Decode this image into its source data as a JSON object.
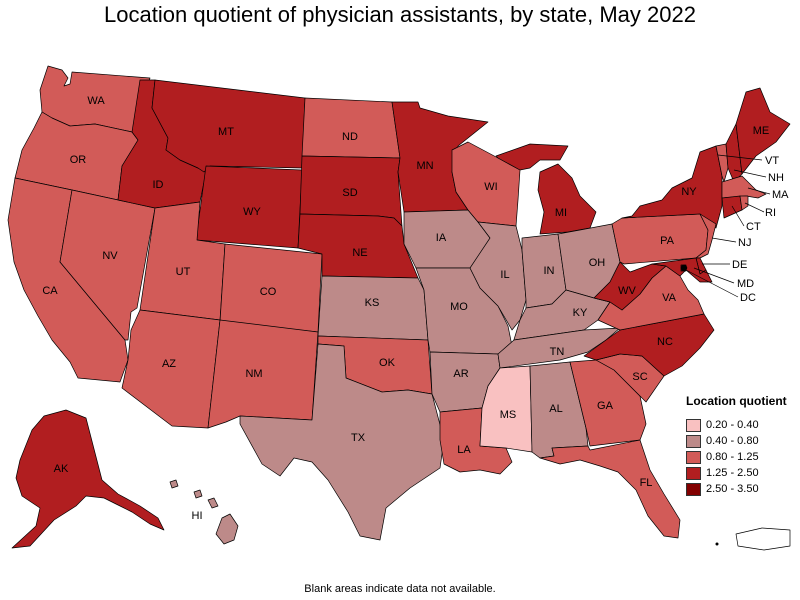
{
  "title": "Location quotient of physician assistants, by state, May 2022",
  "footnote": "Blank areas indicate data not available.",
  "legend": {
    "title": "Location quotient",
    "bins": [
      {
        "label": "0.20 - 0.40",
        "color": "#f9c1c1"
      },
      {
        "label": "0.40 - 0.80",
        "color": "#bd8a89"
      },
      {
        "label": "0.80 - 1.25",
        "color": "#d25b58"
      },
      {
        "label": "1.25 - 2.50",
        "color": "#b11e20"
      },
      {
        "label": "2.50 - 3.50",
        "color": "#820000"
      }
    ]
  },
  "states": [
    {
      "abbr": "WA",
      "bin": 2
    },
    {
      "abbr": "OR",
      "bin": 2
    },
    {
      "abbr": "CA",
      "bin": 2
    },
    {
      "abbr": "NV",
      "bin": 2
    },
    {
      "abbr": "ID",
      "bin": 3
    },
    {
      "abbr": "MT",
      "bin": 3
    },
    {
      "abbr": "WY",
      "bin": 3
    },
    {
      "abbr": "UT",
      "bin": 2
    },
    {
      "abbr": "CO",
      "bin": 2
    },
    {
      "abbr": "AZ",
      "bin": 2
    },
    {
      "abbr": "NM",
      "bin": 2
    },
    {
      "abbr": "ND",
      "bin": 2
    },
    {
      "abbr": "SD",
      "bin": 3
    },
    {
      "abbr": "NE",
      "bin": 3
    },
    {
      "abbr": "KS",
      "bin": 1
    },
    {
      "abbr": "OK",
      "bin": 2
    },
    {
      "abbr": "TX",
      "bin": 1
    },
    {
      "abbr": "MN",
      "bin": 3
    },
    {
      "abbr": "IA",
      "bin": 1
    },
    {
      "abbr": "MO",
      "bin": 1
    },
    {
      "abbr": "AR",
      "bin": 1
    },
    {
      "abbr": "LA",
      "bin": 2
    },
    {
      "abbr": "WI",
      "bin": 2
    },
    {
      "abbr": "IL",
      "bin": 1
    },
    {
      "abbr": "MI",
      "bin": 3
    },
    {
      "abbr": "IN",
      "bin": 1
    },
    {
      "abbr": "OH",
      "bin": 1
    },
    {
      "abbr": "KY",
      "bin": 1
    },
    {
      "abbr": "TN",
      "bin": 1
    },
    {
      "abbr": "MS",
      "bin": 0
    },
    {
      "abbr": "AL",
      "bin": 1
    },
    {
      "abbr": "GA",
      "bin": 2
    },
    {
      "abbr": "FL",
      "bin": 2
    },
    {
      "abbr": "SC",
      "bin": 2
    },
    {
      "abbr": "NC",
      "bin": 3
    },
    {
      "abbr": "VA",
      "bin": 2
    },
    {
      "abbr": "WV",
      "bin": 3
    },
    {
      "abbr": "PA",
      "bin": 2
    },
    {
      "abbr": "NY",
      "bin": 3
    },
    {
      "abbr": "ME",
      "bin": 3
    },
    {
      "abbr": "VT",
      "bin": 2
    },
    {
      "abbr": "NH",
      "bin": 3
    },
    {
      "abbr": "MA",
      "bin": 2
    },
    {
      "abbr": "RI",
      "bin": 2
    },
    {
      "abbr": "CT",
      "bin": 3
    },
    {
      "abbr": "NJ",
      "bin": 2
    },
    {
      "abbr": "DE",
      "bin": 3
    },
    {
      "abbr": "MD",
      "bin": 3
    },
    {
      "abbr": "DC",
      "bin": 4
    },
    {
      "abbr": "AK",
      "bin": 3
    },
    {
      "abbr": "HI",
      "bin": 1
    },
    {
      "abbr": "PR",
      "bin": null
    }
  ]
}
